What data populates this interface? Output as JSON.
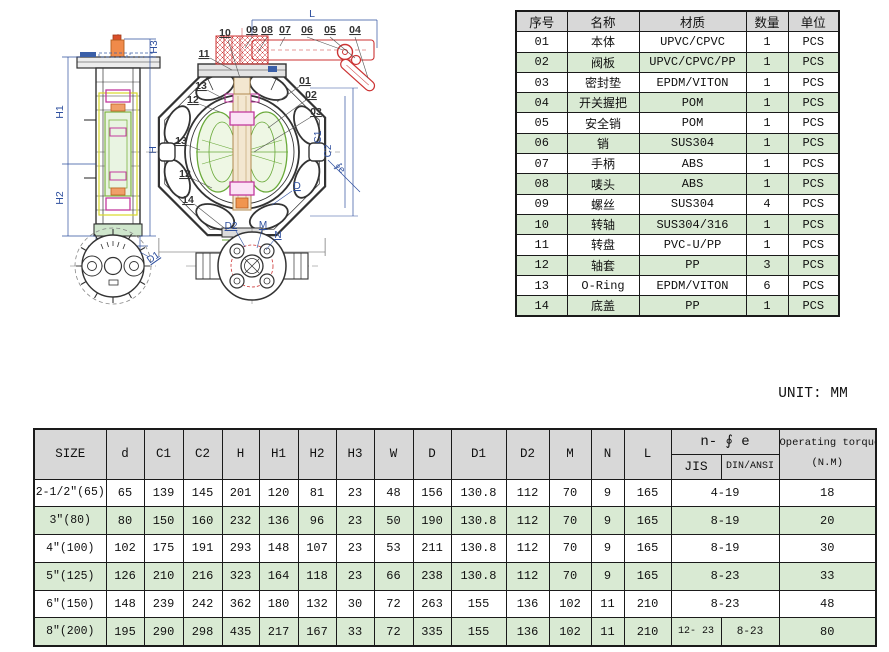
{
  "unit_label": "UNIT: MM",
  "parts_table": {
    "headers": [
      "序号",
      "名称",
      "材质",
      "数量",
      "单位"
    ],
    "rows": [
      [
        "01",
        "本体",
        "UPVC/CPVC",
        "1",
        "PCS"
      ],
      [
        "02",
        "阀板",
        "UPVC/CPVC/PP",
        "1",
        "PCS"
      ],
      [
        "03",
        "密封垫",
        "EPDM/VITON",
        "1",
        "PCS"
      ],
      [
        "04",
        "开关握把",
        "POM",
        "1",
        "PCS"
      ],
      [
        "05",
        "安全销",
        "POM",
        "1",
        "PCS"
      ],
      [
        "06",
        "销",
        "SUS304",
        "1",
        "PCS"
      ],
      [
        "07",
        "手柄",
        "ABS",
        "1",
        "PCS"
      ],
      [
        "08",
        "唛头",
        "ABS",
        "1",
        "PCS"
      ],
      [
        "09",
        "螺丝",
        "SUS304",
        "4",
        "PCS"
      ],
      [
        "10",
        "转轴",
        "SUS304/316",
        "1",
        "PCS"
      ],
      [
        "11",
        "转盘",
        "PVC-U/PP",
        "1",
        "PCS"
      ],
      [
        "12",
        "轴套",
        "PP",
        "3",
        "PCS"
      ],
      [
        "13",
        "O-Ring",
        "EPDM/VITON",
        "6",
        "PCS"
      ],
      [
        "14",
        "底盖",
        "PP",
        "1",
        "PCS"
      ]
    ]
  },
  "dims_table": {
    "headers": [
      "SIZE",
      "d",
      "C1",
      "C2",
      "H",
      "H1",
      "H2",
      "H3",
      "W",
      "D",
      "D1",
      "D2",
      "M",
      "N",
      "L"
    ],
    "hole_header": "n- ∮ e",
    "sub_headers": [
      "JIS",
      "DIN/ANSI"
    ],
    "torque_header": "Operating torque",
    "torque_unit": "(N.M)",
    "rows": [
      {
        "cells": [
          "2-1/2\"(65)",
          "65",
          "139",
          "145",
          "201",
          "120",
          "81",
          "23",
          "48",
          "156",
          "130.8",
          "112",
          "70",
          "9",
          "165"
        ],
        "hole": "4-19",
        "hole_jis": null,
        "hole_din": null,
        "torque": "18"
      },
      {
        "cells": [
          "3\"(80)",
          "80",
          "150",
          "160",
          "232",
          "136",
          "96",
          "23",
          "50",
          "190",
          "130.8",
          "112",
          "70",
          "9",
          "165"
        ],
        "hole": "8-19",
        "hole_jis": null,
        "hole_din": null,
        "torque": "20"
      },
      {
        "cells": [
          "4\"(100)",
          "102",
          "175",
          "191",
          "293",
          "148",
          "107",
          "23",
          "53",
          "211",
          "130.8",
          "112",
          "70",
          "9",
          "165"
        ],
        "hole": "8-19",
        "hole_jis": null,
        "hole_din": null,
        "torque": "30"
      },
      {
        "cells": [
          "5\"(125)",
          "126",
          "210",
          "216",
          "323",
          "164",
          "118",
          "23",
          "66",
          "238",
          "130.8",
          "112",
          "70",
          "9",
          "165"
        ],
        "hole": "8-23",
        "hole_jis": null,
        "hole_din": null,
        "torque": "33"
      },
      {
        "cells": [
          "6\"(150)",
          "148",
          "239",
          "242",
          "362",
          "180",
          "132",
          "30",
          "72",
          "263",
          "155",
          "136",
          "102",
          "11",
          "210"
        ],
        "hole": "8-23",
        "hole_jis": null,
        "hole_din": null,
        "torque": "48"
      },
      {
        "cells": [
          "8\"(200)",
          "195",
          "290",
          "298",
          "435",
          "217",
          "167",
          "33",
          "72",
          "335",
          "155",
          "136",
          "102",
          "11",
          "210"
        ],
        "hole": null,
        "hole_jis": "12- 23",
        "hole_din": "8-23",
        "torque": "80"
      }
    ]
  },
  "drawing": {
    "labels": {
      "l": "L",
      "h": "H",
      "h1": "H1",
      "h2": "H2",
      "h3": "H3",
      "w": "W",
      "d": "D",
      "d1": "D1",
      "c1": "C1",
      "c2": "C2",
      "e": "∮e"
    },
    "callouts_top": [
      "10",
      "09",
      "08",
      "07",
      "06",
      "05",
      "04"
    ],
    "callouts_left": [
      "11",
      "13",
      "12",
      "13",
      "12",
      "14"
    ],
    "callouts_right": [
      "01",
      "02",
      "03"
    ],
    "flange_labels": [
      "D2",
      "M",
      "N"
    ],
    "colors": {
      "dim_blue": "#2e4f9e",
      "handle_red": "#cc3333",
      "disc_green": "#6aaa3a",
      "seal_magenta": "#c23a9e",
      "stem_orange": "#f08a4a",
      "line_dark": "#333333",
      "row_green": "#d9ead3",
      "header_gray": "#d8d8d8"
    }
  }
}
